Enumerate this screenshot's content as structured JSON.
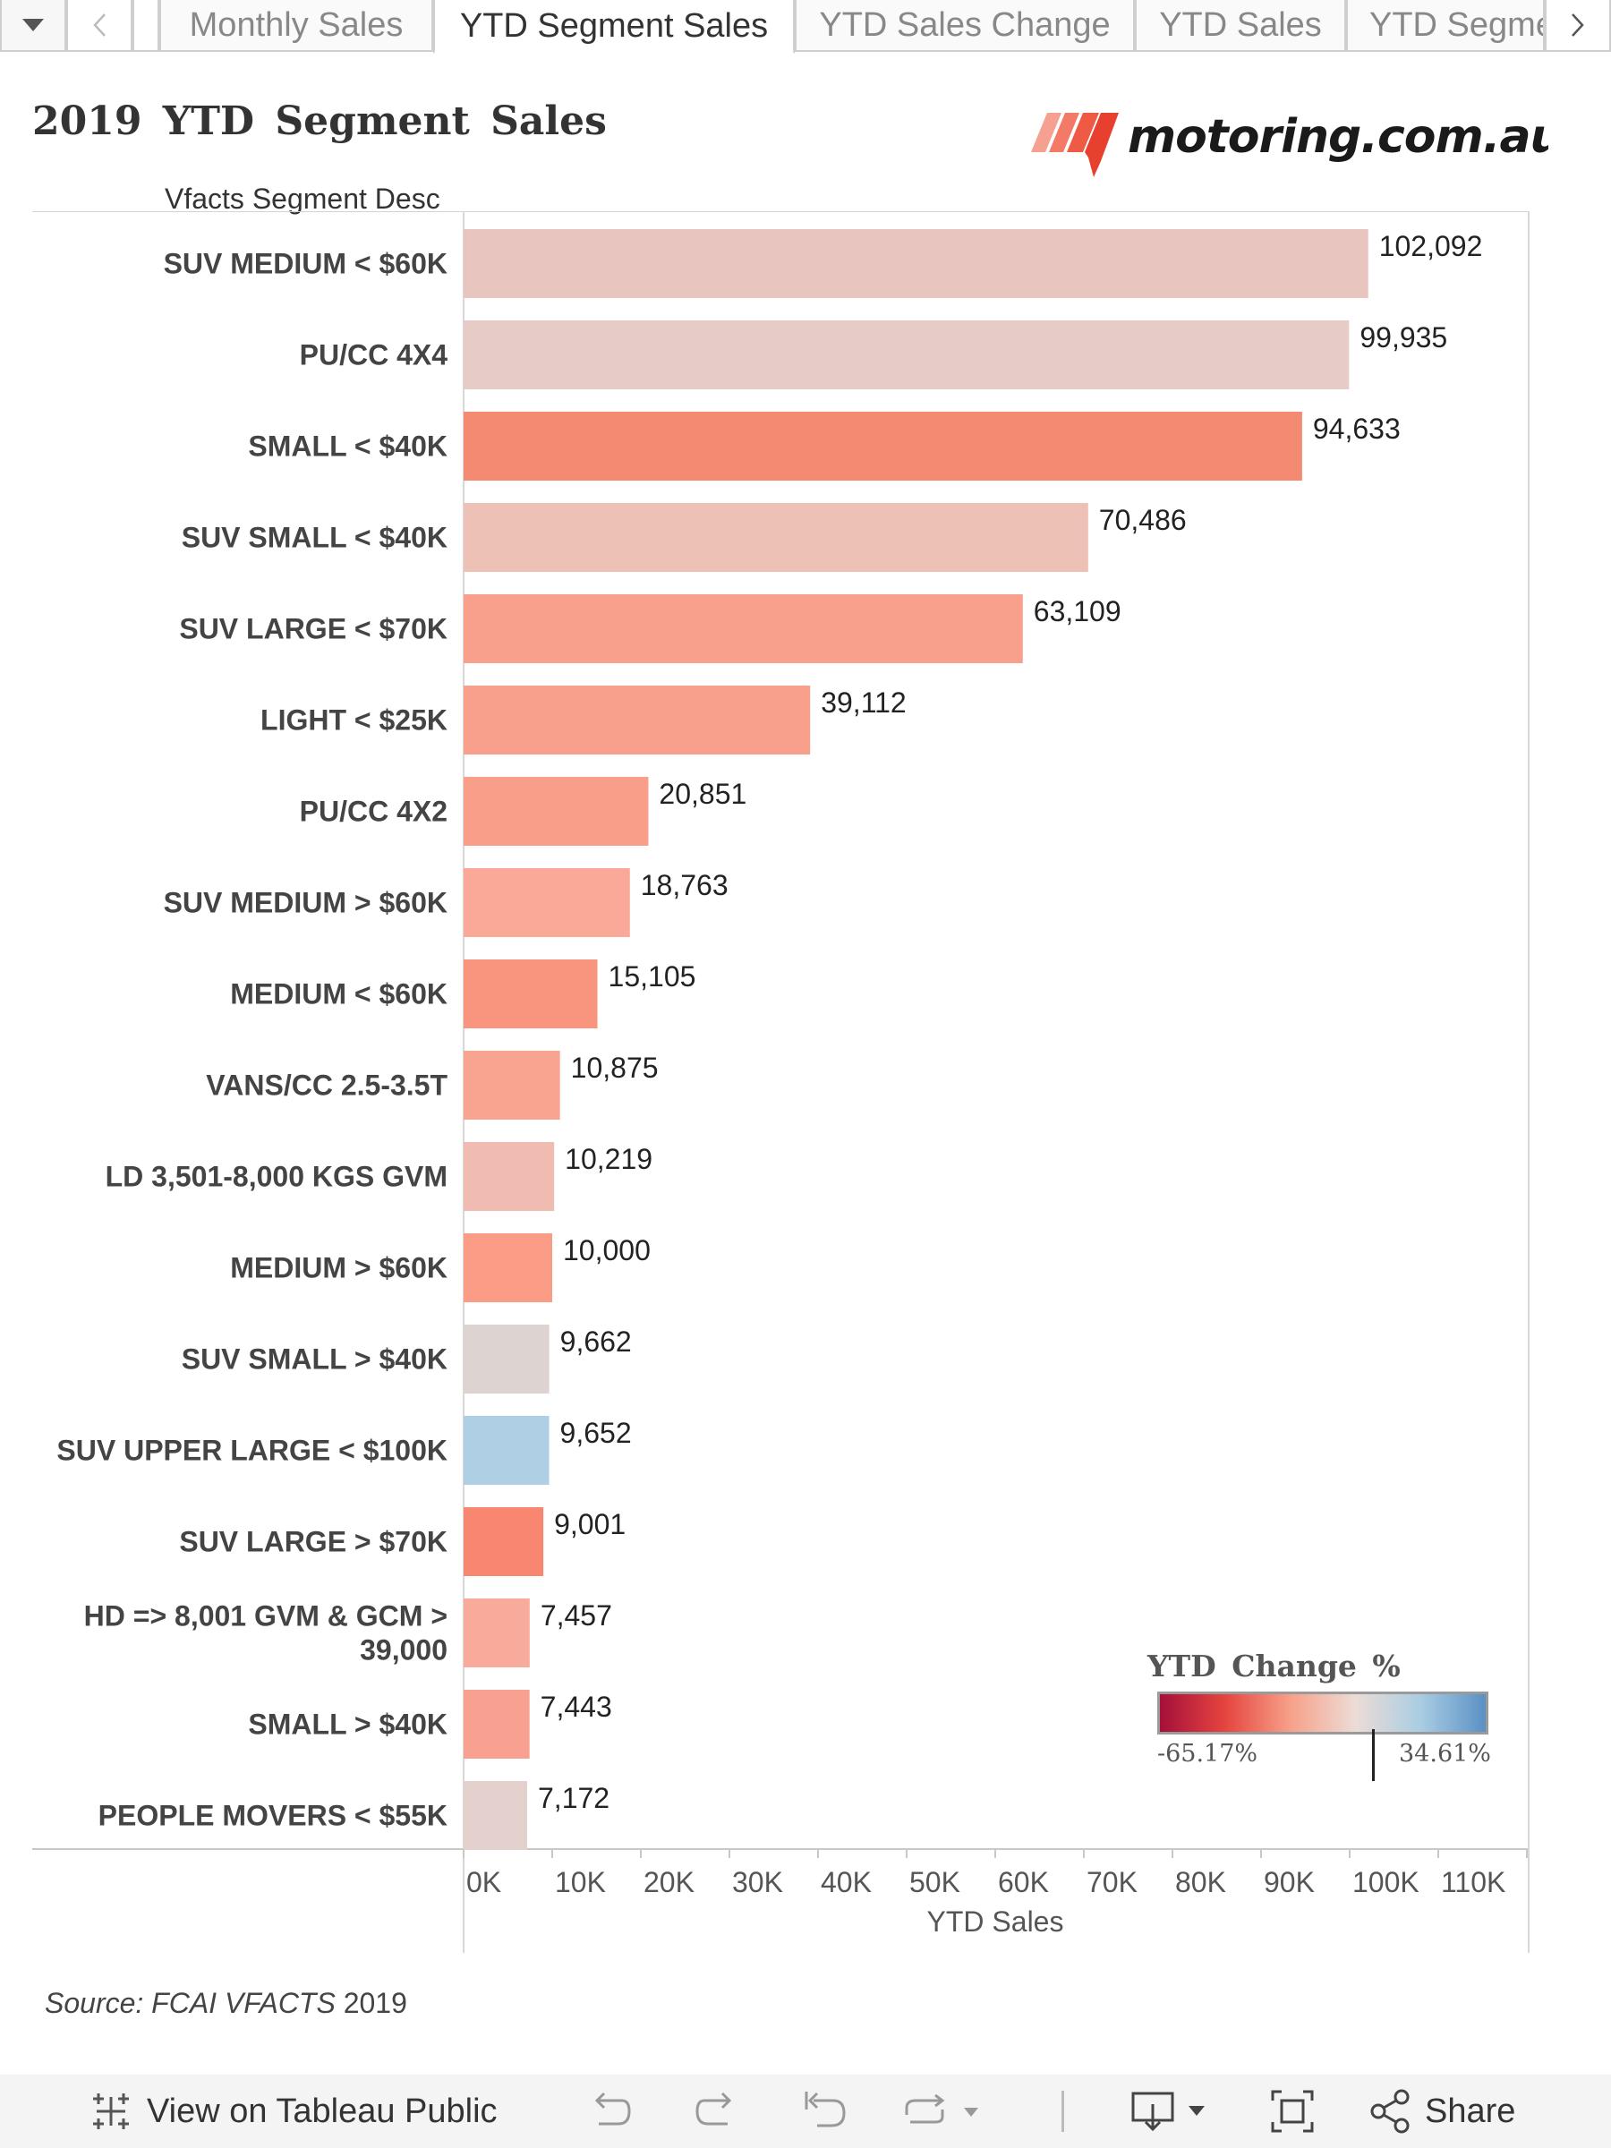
{
  "tabs": {
    "items": [
      {
        "label": "Monthly Sales"
      },
      {
        "label": "YTD Segment Sales"
      },
      {
        "label": "YTD Sales Change"
      },
      {
        "label": "YTD Sales"
      },
      {
        "label": "YTD Segme"
      }
    ],
    "active_index": 1,
    "menu_icon": "caret-down-icon",
    "prev_icon": "chevron-left-icon",
    "next_icon": "chevron-right-icon"
  },
  "dashboard": {
    "title": "2019 YTD Segment Sales",
    "logo_text": "motoring.com.au",
    "row_header": "Vfacts Segment Desc",
    "source": "Source: FCAI VFACTS 2019"
  },
  "legend": {
    "title": "YTD Change %",
    "min_label": "-65.17%",
    "max_label": "34.61%",
    "colors": [
      "#a50f3a",
      "#e5453f",
      "#f7a089",
      "#ecdcd6",
      "#a9cde3",
      "#5b90c4"
    ]
  },
  "chart_data": {
    "type": "bar",
    "orientation": "horizontal",
    "title": "2019 YTD Segment Sales",
    "ylabel": "Vfacts Segment Desc",
    "xlabel": "YTD Sales",
    "xlim": [
      0,
      120000
    ],
    "xticks": [
      0,
      10000,
      20000,
      30000,
      40000,
      50000,
      60000,
      70000,
      80000,
      90000,
      100000,
      110000
    ],
    "xtick_labels": [
      "0K",
      "10K",
      "20K",
      "30K",
      "40K",
      "50K",
      "60K",
      "70K",
      "80K",
      "90K",
      "100K",
      "110K"
    ],
    "categories": [
      "SUV MEDIUM < $60K",
      "PU/CC 4X4",
      "SMALL < $40K",
      "SUV SMALL < $40K",
      "SUV LARGE < $70K",
      "LIGHT < $25K",
      "PU/CC 4X2",
      "SUV MEDIUM > $60K",
      "MEDIUM < $60K",
      "VANS/CC 2.5-3.5T",
      "LD 3,501-8,000 KGS GVM",
      "MEDIUM > $60K",
      "SUV SMALL > $40K",
      "SUV UPPER LARGE < $100K",
      "SUV LARGE > $70K",
      "HD => 8,001 GVM & GCM > 39,000",
      "SMALL > $40K",
      "PEOPLE MOVERS < $55K"
    ],
    "values": [
      102092,
      99935,
      94633,
      70486,
      63109,
      39112,
      20851,
      18763,
      15105,
      10875,
      10219,
      10000,
      9662,
      9652,
      9001,
      7457,
      7443,
      7172
    ],
    "value_labels": [
      "102,092",
      "99,935",
      "94,633",
      "70,486",
      "63,109",
      "39,112",
      "20,851",
      "18,763",
      "15,105",
      "10,875",
      "10,219",
      "10,000",
      "9,662",
      "9,652",
      "9,001",
      "7,457",
      "7,443",
      "7,172"
    ],
    "bar_colors": [
      "#e8c5bf",
      "#e6cbc6",
      "#f58a72",
      "#eec1b7",
      "#f9a08d",
      "#f8a08b",
      "#f99f89",
      "#faa897",
      "#f9957f",
      "#f9a391",
      "#f0bcb1",
      "#fa9c86",
      "#ddd4d1",
      "#aecfe4",
      "#f78771",
      "#f9ab9b",
      "#f9a190",
      "#e4d1cd"
    ],
    "color_legend": "YTD Change %",
    "grid": false
  },
  "footer": {
    "view_label": "View on Tableau Public",
    "share_label": "Share",
    "icons": [
      "tableau-icon",
      "undo-icon",
      "redo-icon",
      "revert-icon",
      "refresh-icon",
      "download-icon",
      "fullscreen-icon",
      "share-icon"
    ]
  }
}
